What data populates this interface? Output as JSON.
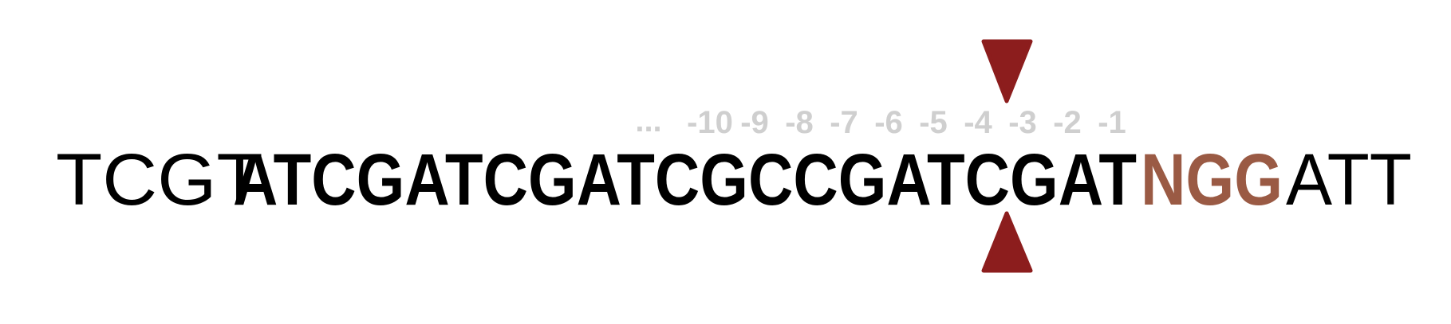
{
  "colors": {
    "sequence": "#000000",
    "pam": "#9a5a44",
    "positions": "#cfcfcf",
    "cut_marker": "#8c1d1d",
    "background": "#ffffff"
  },
  "positions": {
    "ellipsis": "...",
    "labels": [
      "-10",
      "-9",
      "-8",
      "-7",
      "-6",
      "-5",
      "-4",
      "-3",
      "-2",
      "-1"
    ]
  },
  "sequence": {
    "flank_left": "TCGT",
    "protospacer": "ATCGATCGATCGCCGATCGAT",
    "pam": "NGG",
    "flank_right": "ATT"
  },
  "cut_site": {
    "after_position": "-4",
    "icons": [
      "triangle-down-icon",
      "triangle-up-icon"
    ]
  }
}
